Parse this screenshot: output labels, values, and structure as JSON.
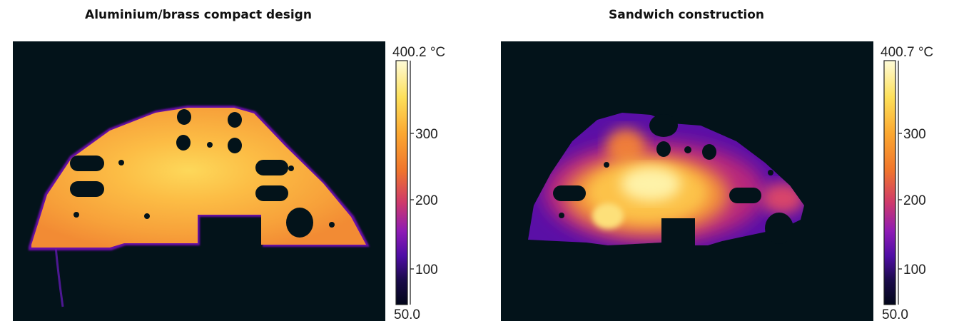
{
  "panels": [
    {
      "title": "Aluminium/brass compact design",
      "colorbar": {
        "max_label": "400.2 °C",
        "min_label": "50.0",
        "ticks": [
          "300",
          "200",
          "100"
        ]
      }
    },
    {
      "title": "Sandwich construction",
      "colorbar": {
        "max_label": "400.7 °C",
        "min_label": "50.0",
        "ticks": [
          "300",
          "200",
          "100"
        ]
      }
    }
  ],
  "colors": {
    "background_dark": "#03131a",
    "palette": [
      "#fefbd8",
      "#fde05a",
      "#fba730",
      "#f0752c",
      "#cf3a6a",
      "#8e1bb5",
      "#4f0da5",
      "#1a0a4a",
      "#02061a"
    ]
  }
}
